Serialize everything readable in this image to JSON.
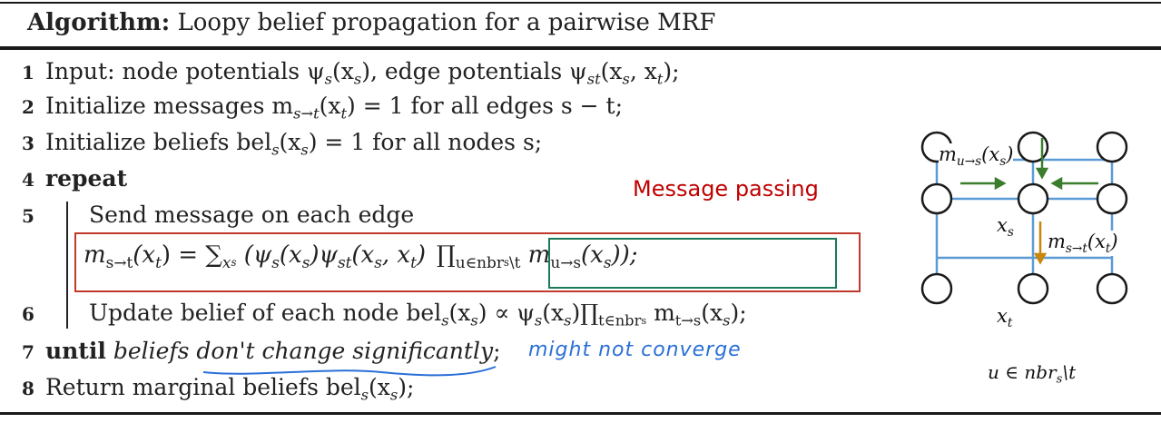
{
  "algorithm": {
    "title_label": "Algorithm:",
    "title_text": "Loopy belief propagation for a pairwise MRF",
    "lines": [
      {
        "num": "1",
        "text": "Input: node potentials ψ",
        "sub": "s",
        "rest": "(x",
        "sub2": "s",
        "rest2": "), edge potentials ψ",
        "sub3": "st",
        "rest3": "(x",
        "sub4": "s",
        "rest4": ", x",
        "sub5": "t",
        "rest5": ");"
      },
      {
        "num": "2",
        "text": "Initialize messages m",
        "sub": "s→t",
        "rest": "(x",
        "sub2": "t",
        "rest2": ") = 1 for all edges s − t;"
      },
      {
        "num": "3",
        "text": "Initialize beliefs bel",
        "sub": "s",
        "rest": "(x",
        "sub2": "s",
        "rest2": ") = 1 for all nodes s;"
      },
      {
        "num": "4",
        "keyword": "repeat"
      },
      {
        "num": "5",
        "text": "Send message on each edge"
      },
      {
        "num": "",
        "formula": "m",
        "fsub": "s→t",
        "f1": "(x",
        "fsub2": "t",
        "f2": ") = ∑",
        "fsub3": "x",
        "fsub3b": "s",
        "f3": " (ψ",
        "fsub4": "s",
        "f4": "(x",
        "fsub5": "s",
        "f5": ")ψ",
        "fsub6": "st",
        "f6": "(x",
        "fsub7": "s",
        "f7": ", x",
        "fsub8": "t",
        "f8": ")",
        "prod": "∏",
        "prodsub": "u∈nbr",
        "prodsub2": "s",
        "prodsub3": "\\t",
        "f9": " m",
        "fsub9": "u→s",
        "f10": "(x",
        "fsub10": "s",
        "f11": "));"
      },
      {
        "num": "6",
        "text": "Update belief of each node bel",
        "sub": "s",
        "rest": "(x",
        "sub2": "s",
        "rest2": ") ∝ ψ",
        "sub3": "s",
        "rest3": "(x",
        "sub4": "s",
        "rest4": ")",
        "prod": "∏",
        "prodsub": "t∈nbr",
        "prodsub2": "s",
        "rest5": " m",
        "sub5": "t→s",
        "rest6": "(x",
        "sub6": "s",
        "rest7": ");"
      },
      {
        "num": "7",
        "keyword": "until",
        "text": "beliefs don't change significantly",
        "rest": ";"
      },
      {
        "num": "8",
        "text": "Return marginal beliefs bel",
        "sub": "s",
        "rest": "(x",
        "sub2": "s",
        "rest2": ");"
      }
    ]
  },
  "annotations": {
    "message_passing": "Message passing",
    "might_not_converge": "might not converge"
  },
  "graph": {
    "label_mus": "m",
    "label_mus_sub": "u→s",
    "label_mus_rest": "(x",
    "label_mus_sub2": "s",
    "label_mus_rest2": ")",
    "label_mst": "m",
    "label_mst_sub": "s→t",
    "label_mst_rest": "(x",
    "label_mst_sub2": "t",
    "label_mst_rest2": ")",
    "label_xs": "x",
    "label_xs_sub": "s",
    "label_xt": "x",
    "label_xt_sub": "t",
    "caption": "u ∈ nbr",
    "caption_sub": "s",
    "caption_rest": "\\t",
    "colors": {
      "edge": "#5b9bd5",
      "arrow_in": "#3a7d2c",
      "arrow_out": "#c8860a"
    }
  }
}
